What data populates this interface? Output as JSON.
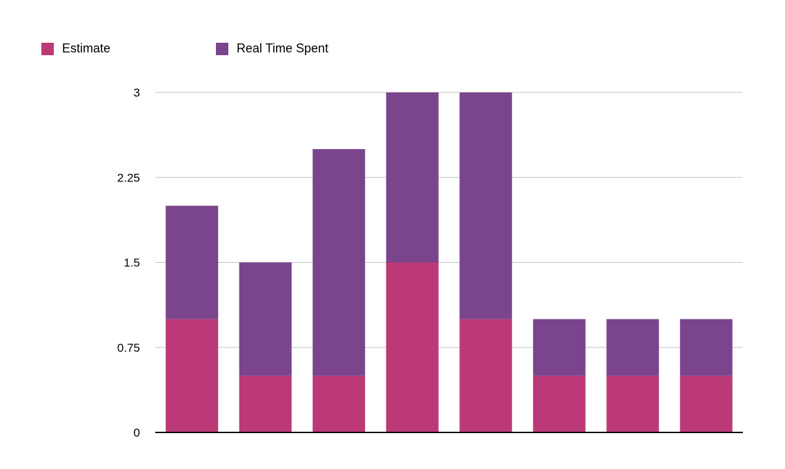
{
  "chart_data": {
    "type": "bar",
    "stacked": true,
    "categories": [
      "",
      "",
      "",
      "",
      "",
      "",
      "",
      ""
    ],
    "series": [
      {
        "name": "Estimate",
        "color": "#bb3977",
        "values": [
          1,
          0.5,
          0.5,
          1.5,
          1,
          0.5,
          0.5,
          0.5
        ]
      },
      {
        "name": "Real Time Spent",
        "color": "#7a458c",
        "values": [
          1,
          1,
          2,
          1.5,
          2,
          0.5,
          0.5,
          0.5
        ]
      }
    ],
    "title": "",
    "xlabel": "",
    "ylabel": "",
    "ylim": [
      0,
      3
    ],
    "yticks": [
      "0",
      "0.75",
      "1.5",
      "2.25",
      "3"
    ],
    "yticks_values": [
      0,
      0.75,
      1.5,
      2.25,
      3
    ],
    "grid": true,
    "legend_position": "top-left"
  }
}
